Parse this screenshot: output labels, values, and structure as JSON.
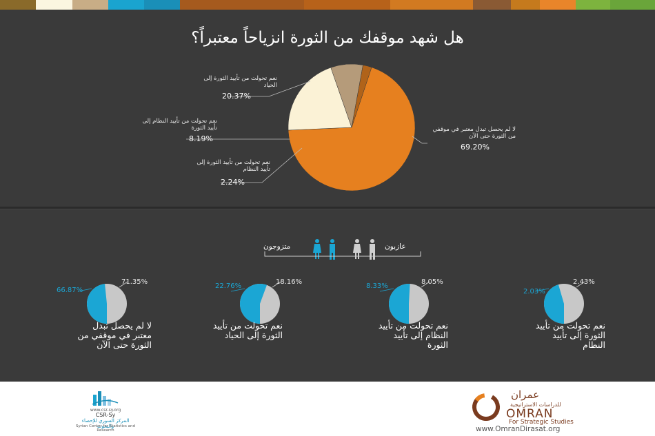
{
  "colors": {
    "topbar": [
      "#8a6a2a",
      "#fbf6e0",
      "#c8ad86",
      "#1aa4cf",
      "#1a8fb8",
      "#a55a1e",
      "#b7621a",
      "#d27a21",
      "#8a5a34",
      "#c57a1d",
      "#e9852a",
      "#7db33e",
      "#6aa53a"
    ],
    "orange": "#e6801f",
    "cream": "#fbf2d6",
    "tan": "#b59b7a",
    "brown": "#b0631a",
    "blue": "#1ba6d4",
    "grey": "#c8c8c8",
    "omran": "#7a3b1f"
  },
  "title": "هل شهد موقفك من الثورة انزياحاً معتبراً؟",
  "chart_data": [
    {
      "type": "pie",
      "title": "هل شهد موقفك من الثورة انزياحاً معتبراً؟",
      "slices": [
        {
          "label": "لا لم يحصل تبدل معتبر في موقفي من الثورة حتى الآن",
          "value": 69.2,
          "display": "69.20%",
          "color": "#e6801f"
        },
        {
          "label": "نعم تحولت من تأييد الثورة إلى الحياد",
          "value": 20.37,
          "display": "20.37%",
          "color": "#fbf2d6"
        },
        {
          "label": "نعم تحولت من تأييد النظام إلى تأييد الثورة",
          "value": 8.19,
          "display": "8.19%",
          "color": "#b59b7a"
        },
        {
          "label": "نعم تحولت من تأييد الثورة إلى تأييد النظام",
          "value": 2.24,
          "display": "2.24%",
          "color": "#b0631a"
        }
      ]
    },
    {
      "type": "pie",
      "legend": [
        "متزوجون",
        "عازبون"
      ],
      "groups": [
        {
          "caption": "لا لم يحصل تبدل معتبر في موقفي من الثورة حتى الآن",
          "married": 66.87,
          "married_display": "66.87%",
          "single": 71.35,
          "single_display": "71.35%"
        },
        {
          "caption": "نعم تحولت من تأييد الثورة إلى الحياد",
          "married": 22.76,
          "married_display": "22.76%",
          "single": 18.16,
          "single_display": "18.16%"
        },
        {
          "caption": "نعم تحولت من تأييد النظام إلى تأييد الثورة",
          "married": 8.33,
          "married_display": "8.33%",
          "single": 8.05,
          "single_display": "8.05%"
        },
        {
          "caption": "نعم تحولت من تأييد الثورة إلى تأييد النظام",
          "married": 2.03,
          "married_display": "2.03%",
          "single": 2.43,
          "single_display": "2.43%"
        }
      ]
    }
  ],
  "main_labels": {
    "no_change": "لا لم يحصل تبدل معتبر في موقفي من الثورة حتى الآن",
    "no_change_pct": "69.20%",
    "rev_to_neutral": "نعم تحولت من تأييد الثورة إلى الحياد",
    "rev_to_neutral_pct": "20.37%",
    "regime_to_rev": "نعم تحولت من تأييد النظام إلى تأييد الثورة",
    "regime_to_rev_pct": "8.19%",
    "rev_to_regime": "نعم تحولت من تأييد الثورة إلى تأييد النظام",
    "rev_to_regime_pct": "2.24%"
  },
  "legend": {
    "married": "متزوجون",
    "single": "عازبون"
  },
  "small": [
    {
      "caption": "لا لم يحصل تبدل معتبر في موقفي من الثورة حتى الآن",
      "married": "66.87%",
      "single": "71.35%"
    },
    {
      "caption": "نعم تحولت من تأييد الثورة إلى الحياد",
      "married": "22.76%",
      "single": "18.16%"
    },
    {
      "caption": "نعم تحولت من تأييد النظام إلى تأييد الثورة",
      "married": "8.33%",
      "single": "8.05%"
    },
    {
      "caption": "نعم تحولت من تأييد الثورة إلى تأييد النظام",
      "married": "2.03%",
      "single": "2.43%"
    }
  ],
  "footer": {
    "omran_ar": "عمران",
    "omran_ar_sub": "للدراسات الاستراتيجية",
    "omran_en": "OMRAN",
    "omran_en_sub": "For Strategic Studies",
    "omran_url": "www.OmranDirasat.org",
    "csr_name": "CSR-Sy",
    "csr_url": "www.csr-sy.org",
    "csr_ar": "المركز السوري للإحصاء والبحوث",
    "csr_en": "Syrian Center for Statistics and Research"
  }
}
